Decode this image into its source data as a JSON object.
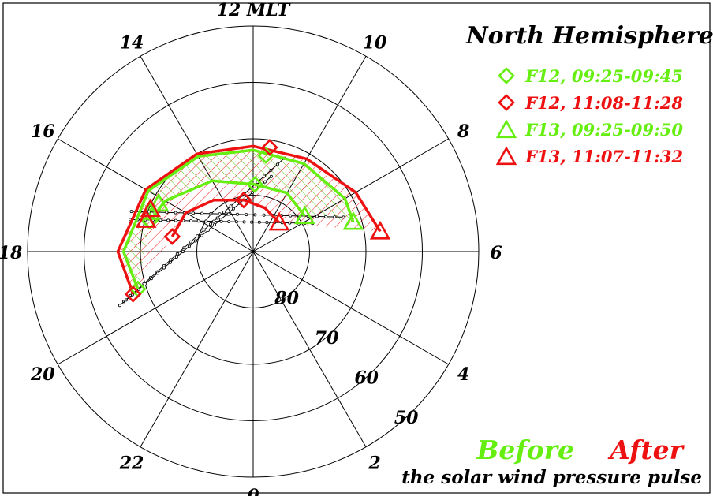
{
  "chart_data": {
    "type": "scatter",
    "projection": "polar MLT / magnetic latitude, noon at top",
    "title": "North Hemisphere",
    "mlt_labels": [
      "12 MLT",
      "10",
      "8",
      "6",
      "4",
      "2",
      "0",
      "22",
      "20",
      "18",
      "16",
      "14"
    ],
    "latitude_labels": [
      "80",
      "70",
      "60",
      "50"
    ],
    "latitude_rings": [
      80,
      70,
      60,
      50
    ],
    "latitude_range": [
      50,
      90
    ],
    "grid": true,
    "legend_position": "top-right",
    "legend": [
      {
        "label": "F12, 09:25-09:45",
        "marker": "diamond",
        "color": "#66ee11"
      },
      {
        "label": "F12, 11:08-11:28",
        "marker": "diamond",
        "color": "#ee1111"
      },
      {
        "label": "F13, 09:25-09:50",
        "marker": "triangle",
        "color": "#66ee11"
      },
      {
        "label": "F13, 11:07-11:32",
        "marker": "triangle",
        "color": "#ee1111"
      }
    ],
    "annotation": {
      "before": "Before",
      "after": "After",
      "caption": "the solar wind pressure pulse"
    },
    "colors": {
      "before": "#66ee11",
      "after": "#ee1111",
      "grid": "#000000",
      "track": "#000000"
    },
    "series": [
      {
        "name": "F12, 09:25-09:45",
        "marker": "diamond",
        "color": "#66ee11",
        "points": [
          {
            "mlt": 11.5,
            "mlat": 72.8
          },
          {
            "mlt": 11.9,
            "mlat": 78.1
          },
          {
            "mlt": 16.9,
            "mlat": 70.9
          },
          {
            "mlt": 19.2,
            "mlat": 68.5
          }
        ]
      },
      {
        "name": "F12, 11:08-11:28",
        "marker": "diamond",
        "color": "#ee1111",
        "points": [
          {
            "mlt": 11.4,
            "mlat": 71.3
          },
          {
            "mlt": 12.7,
            "mlat": 80.7
          },
          {
            "mlt": 17.3,
            "mlat": 75.4
          },
          {
            "mlt": 19.3,
            "mlat": 67.4
          }
        ]
      },
      {
        "name": "F13, 09:25-09:50",
        "marker": "triangle",
        "color": "#66ee11",
        "points": [
          {
            "mlt": 7.1,
            "mlat": 71.5
          },
          {
            "mlt": 8.3,
            "mlat": 78.9
          },
          {
            "mlt": 16.2,
            "mlat": 71.2
          },
          {
            "mlt": 16.6,
            "mlat": 70.4
          }
        ]
      },
      {
        "name": "F13, 11:07-11:32",
        "marker": "triangle",
        "color": "#ee1111",
        "points": [
          {
            "mlt": 6.6,
            "mlat": 67.2
          },
          {
            "mlt": 9.2,
            "mlat": 83.1
          },
          {
            "mlt": 16.5,
            "mlat": 70.3
          },
          {
            "mlt": 16.9,
            "mlat": 70.2
          }
        ]
      }
    ],
    "boundaries": [
      {
        "kind": "after-outer",
        "color": "#ee1111",
        "points": [
          {
            "mlt": 19.3,
            "mlat": 67.4
          },
          {
            "mlt": 18.0,
            "mlat": 66.0
          },
          {
            "mlt": 16.0,
            "mlat": 68.0
          },
          {
            "mlt": 14.0,
            "mlat": 70.0
          },
          {
            "mlt": 12.0,
            "mlat": 71.3
          },
          {
            "mlt": 10.0,
            "mlat": 71.0
          },
          {
            "mlt": 8.0,
            "mlat": 69.0
          },
          {
            "mlt": 6.6,
            "mlat": 67.2
          }
        ]
      },
      {
        "kind": "after-inner",
        "color": "#ee1111",
        "points": [
          {
            "mlt": 17.3,
            "mlat": 75.4
          },
          {
            "mlt": 16.0,
            "mlat": 76.2
          },
          {
            "mlt": 14.5,
            "mlat": 78.5
          },
          {
            "mlt": 12.7,
            "mlat": 80.7
          },
          {
            "mlt": 11.0,
            "mlat": 82.0
          },
          {
            "mlt": 9.2,
            "mlat": 83.1
          }
        ]
      },
      {
        "kind": "before-outer",
        "color": "#66ee11",
        "points": [
          {
            "mlt": 19.2,
            "mlat": 68.5
          },
          {
            "mlt": 18.0,
            "mlat": 67.0
          },
          {
            "mlt": 16.0,
            "mlat": 68.5
          },
          {
            "mlt": 14.0,
            "mlat": 70.5
          },
          {
            "mlt": 12.0,
            "mlat": 72.0
          },
          {
            "mlt": 10.0,
            "mlat": 72.0
          },
          {
            "mlt": 8.0,
            "mlat": 71.2
          },
          {
            "mlt": 7.1,
            "mlat": 71.5
          }
        ]
      },
      {
        "kind": "before-inner",
        "color": "#66ee11",
        "points": [
          {
            "mlt": 16.9,
            "mlat": 70.9
          },
          {
            "mlt": 16.0,
            "mlat": 72.0
          },
          {
            "mlt": 14.0,
            "mlat": 75.5
          },
          {
            "mlt": 11.9,
            "mlat": 78.1
          },
          {
            "mlt": 10.0,
            "mlat": 78.0
          },
          {
            "mlt": 8.3,
            "mlat": 78.9
          }
        ]
      }
    ]
  }
}
